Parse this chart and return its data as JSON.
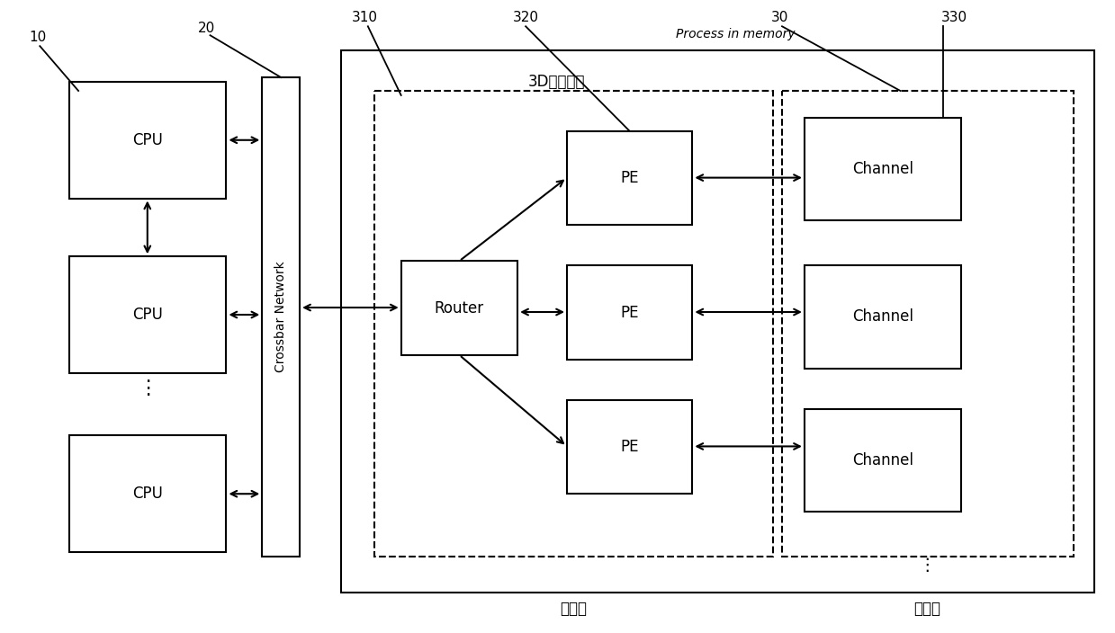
{
  "bg_color": "#ffffff",
  "figsize": [
    12.39,
    7.04
  ],
  "dpi": 100,
  "labels": {
    "label_10": "10",
    "label_20": "20",
    "label_310": "310",
    "label_320": "320",
    "label_30": "30",
    "label_330": "330",
    "process_in_memory": "Process in memory",
    "stacked_memory": "3D堆叠内存",
    "logic_layer": "逻辑层",
    "storage_layer": "存储层",
    "crossbar": "Crossbar Network",
    "cpu": "CPU",
    "router": "Router",
    "pe": "PE",
    "channel": "Channel",
    "dots": "⋮"
  },
  "lw": 1.5,
  "fs_main": 12,
  "fs_label": 11,
  "fs_small": 10
}
